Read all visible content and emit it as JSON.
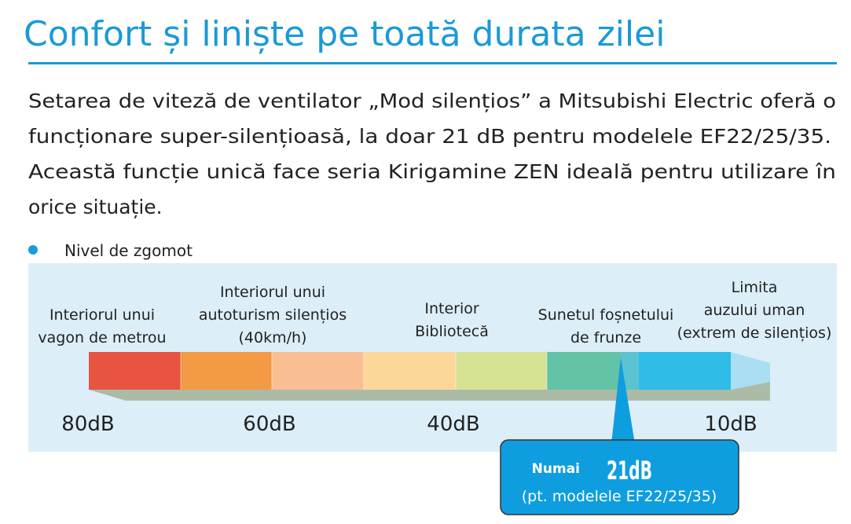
{
  "header": {
    "title": "Confort și liniște pe toată durata zilei"
  },
  "paragraph": [
    "Setarea de viteză de ventilator „Mod silențios” a Mitsubishi Electric oferă o",
    "funcționare super-silențioasă, la doar 21 dB pentru modelele EF22/25/35.",
    "Această funcție unică face seria Kirigamine ZEN ideală pentru utilizare în",
    "orice situație."
  ],
  "bullet": "Nivel de zgomot",
  "scale": {
    "descriptions": [
      {
        "lines": [
          "Interiorul unui",
          "vagon de metrou"
        ]
      },
      {
        "lines": [
          "Interiorul unui",
          "autoturism silențios",
          "(40km/h)"
        ]
      },
      {
        "lines": [
          "Interior",
          "Bibliotecă"
        ]
      },
      {
        "lines": [
          "Sunetul foșnetului",
          "de frunze"
        ]
      },
      {
        "lines": [
          "Limita",
          "auzului uman",
          "(extrem de silențios)"
        ]
      }
    ],
    "levels": [
      "80dB",
      "60dB",
      "40dB",
      "10dB"
    ]
  },
  "callout": {
    "prefix": "Numai",
    "value": "21dB",
    "note": "(pt. modelele EF22/25/35)"
  }
}
